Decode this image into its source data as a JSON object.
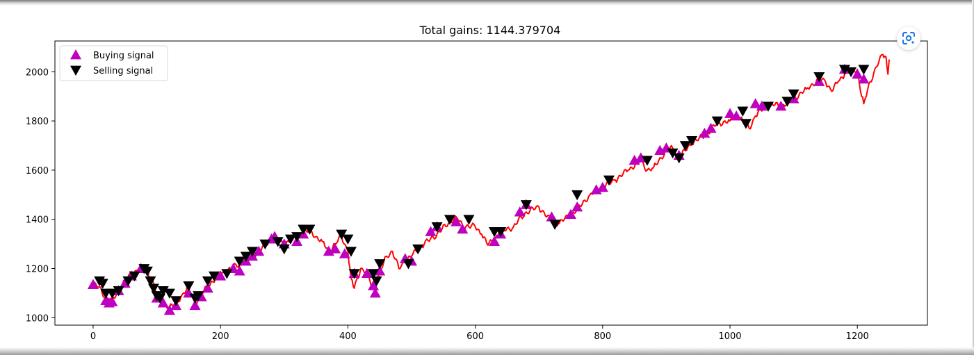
{
  "chart_data": {
    "type": "line",
    "title": "Total gains: 1144.379704",
    "xlabel": "",
    "ylabel": "",
    "xlim": [
      -60,
      1310
    ],
    "ylim": [
      970,
      2125
    ],
    "xticks": [
      0,
      200,
      400,
      600,
      800,
      1000,
      1200
    ],
    "yticks": [
      1000,
      1200,
      1400,
      1600,
      1800,
      2000
    ],
    "grid": false,
    "legend_position": "upper-left",
    "price_color": "#ff0000",
    "buy_color": "#bf00bf",
    "sell_color": "#000000",
    "price_keypoints": [
      [
        0,
        1135
      ],
      [
        10,
        1125
      ],
      [
        20,
        1080
      ],
      [
        30,
        1070
      ],
      [
        40,
        1110
      ],
      [
        50,
        1150
      ],
      [
        60,
        1175
      ],
      [
        70,
        1195
      ],
      [
        80,
        1205
      ],
      [
        90,
        1165
      ],
      [
        100,
        1100
      ],
      [
        110,
        1065
      ],
      [
        120,
        1040
      ],
      [
        130,
        1060
      ],
      [
        140,
        1095
      ],
      [
        150,
        1120
      ],
      [
        160,
        1060
      ],
      [
        170,
        1095
      ],
      [
        180,
        1130
      ],
      [
        200,
        1175
      ],
      [
        220,
        1205
      ],
      [
        240,
        1235
      ],
      [
        260,
        1270
      ],
      [
        280,
        1320
      ],
      [
        300,
        1300
      ],
      [
        320,
        1330
      ],
      [
        340,
        1355
      ],
      [
        350,
        1330
      ],
      [
        360,
        1310
      ],
      [
        370,
        1270
      ],
      [
        380,
        1300
      ],
      [
        390,
        1330
      ],
      [
        400,
        1270
      ],
      [
        405,
        1160
      ],
      [
        410,
        1120
      ],
      [
        420,
        1200
      ],
      [
        430,
        1180
      ],
      [
        440,
        1120
      ],
      [
        450,
        1180
      ],
      [
        460,
        1250
      ],
      [
        470,
        1270
      ],
      [
        480,
        1200
      ],
      [
        490,
        1230
      ],
      [
        500,
        1250
      ],
      [
        510,
        1280
      ],
      [
        520,
        1300
      ],
      [
        540,
        1340
      ],
      [
        560,
        1390
      ],
      [
        570,
        1410
      ],
      [
        580,
        1375
      ],
      [
        600,
        1370
      ],
      [
        610,
        1340
      ],
      [
        620,
        1295
      ],
      [
        630,
        1320
      ],
      [
        640,
        1350
      ],
      [
        660,
        1370
      ],
      [
        680,
        1430
      ],
      [
        700,
        1450
      ],
      [
        720,
        1390
      ],
      [
        730,
        1380
      ],
      [
        740,
        1400
      ],
      [
        760,
        1440
      ],
      [
        780,
        1500
      ],
      [
        800,
        1530
      ],
      [
        820,
        1560
      ],
      [
        840,
        1600
      ],
      [
        860,
        1640
      ],
      [
        870,
        1600
      ],
      [
        880,
        1610
      ],
      [
        900,
        1680
      ],
      [
        910,
        1690
      ],
      [
        920,
        1650
      ],
      [
        940,
        1710
      ],
      [
        960,
        1740
      ],
      [
        980,
        1790
      ],
      [
        1000,
        1800
      ],
      [
        1010,
        1830
      ],
      [
        1020,
        1800
      ],
      [
        1030,
        1770
      ],
      [
        1040,
        1820
      ],
      [
        1060,
        1870
      ],
      [
        1080,
        1860
      ],
      [
        1100,
        1890
      ],
      [
        1120,
        1930
      ],
      [
        1140,
        1970
      ],
      [
        1150,
        1960
      ],
      [
        1160,
        1920
      ],
      [
        1170,
        1960
      ],
      [
        1180,
        1990
      ],
      [
        1200,
        2010
      ],
      [
        1205,
        1920
      ],
      [
        1210,
        1870
      ],
      [
        1220,
        1960
      ],
      [
        1230,
        2020
      ],
      [
        1240,
        2070
      ],
      [
        1245,
        2060
      ],
      [
        1248,
        1990
      ],
      [
        1250,
        2050
      ]
    ],
    "buy_signals": [
      [
        0,
        1135
      ],
      [
        20,
        1070
      ],
      [
        25,
        1060
      ],
      [
        30,
        1065
      ],
      [
        40,
        1110
      ],
      [
        50,
        1140
      ],
      [
        60,
        1170
      ],
      [
        75,
        1200
      ],
      [
        100,
        1080
      ],
      [
        110,
        1060
      ],
      [
        120,
        1030
      ],
      [
        130,
        1050
      ],
      [
        150,
        1100
      ],
      [
        160,
        1050
      ],
      [
        170,
        1085
      ],
      [
        180,
        1120
      ],
      [
        200,
        1170
      ],
      [
        220,
        1200
      ],
      [
        230,
        1190
      ],
      [
        240,
        1230
      ],
      [
        250,
        1250
      ],
      [
        260,
        1270
      ],
      [
        280,
        1320
      ],
      [
        285,
        1330
      ],
      [
        300,
        1300
      ],
      [
        320,
        1310
      ],
      [
        330,
        1340
      ],
      [
        370,
        1270
      ],
      [
        380,
        1280
      ],
      [
        395,
        1260
      ],
      [
        410,
        1180
      ],
      [
        430,
        1180
      ],
      [
        440,
        1130
      ],
      [
        443,
        1100
      ],
      [
        450,
        1190
      ],
      [
        490,
        1240
      ],
      [
        500,
        1230
      ],
      [
        530,
        1350
      ],
      [
        540,
        1370
      ],
      [
        570,
        1390
      ],
      [
        580,
        1360
      ],
      [
        630,
        1310
      ],
      [
        640,
        1340
      ],
      [
        670,
        1430
      ],
      [
        680,
        1460
      ],
      [
        720,
        1410
      ],
      [
        750,
        1420
      ],
      [
        760,
        1450
      ],
      [
        790,
        1520
      ],
      [
        800,
        1530
      ],
      [
        850,
        1640
      ],
      [
        860,
        1650
      ],
      [
        890,
        1680
      ],
      [
        900,
        1690
      ],
      [
        920,
        1660
      ],
      [
        960,
        1750
      ],
      [
        970,
        1770
      ],
      [
        1000,
        1830
      ],
      [
        1010,
        1820
      ],
      [
        1040,
        1870
      ],
      [
        1050,
        1860
      ],
      [
        1080,
        1860
      ],
      [
        1100,
        1890
      ],
      [
        1140,
        1960
      ],
      [
        1180,
        2010
      ],
      [
        1200,
        1990
      ],
      [
        1210,
        1970
      ]
    ],
    "sell_signals": [
      [
        10,
        1150
      ],
      [
        15,
        1140
      ],
      [
        20,
        1100
      ],
      [
        30,
        1100
      ],
      [
        40,
        1110
      ],
      [
        55,
        1150
      ],
      [
        65,
        1170
      ],
      [
        80,
        1200
      ],
      [
        85,
        1190
      ],
      [
        90,
        1150
      ],
      [
        95,
        1120
      ],
      [
        100,
        1090
      ],
      [
        105,
        1080
      ],
      [
        110,
        1110
      ],
      [
        120,
        1100
      ],
      [
        130,
        1070
      ],
      [
        150,
        1130
      ],
      [
        160,
        1080
      ],
      [
        165,
        1090
      ],
      [
        180,
        1150
      ],
      [
        190,
        1170
      ],
      [
        210,
        1180
      ],
      [
        230,
        1230
      ],
      [
        240,
        1250
      ],
      [
        250,
        1270
      ],
      [
        270,
        1300
      ],
      [
        290,
        1310
      ],
      [
        300,
        1280
      ],
      [
        310,
        1320
      ],
      [
        320,
        1330
      ],
      [
        330,
        1360
      ],
      [
        340,
        1360
      ],
      [
        390,
        1340
      ],
      [
        400,
        1320
      ],
      [
        405,
        1270
      ],
      [
        410,
        1180
      ],
      [
        440,
        1180
      ],
      [
        445,
        1150
      ],
      [
        450,
        1220
      ],
      [
        495,
        1220
      ],
      [
        510,
        1280
      ],
      [
        540,
        1370
      ],
      [
        560,
        1400
      ],
      [
        590,
        1400
      ],
      [
        630,
        1350
      ],
      [
        640,
        1350
      ],
      [
        680,
        1460
      ],
      [
        725,
        1380
      ],
      [
        760,
        1500
      ],
      [
        810,
        1560
      ],
      [
        870,
        1640
      ],
      [
        910,
        1670
      ],
      [
        920,
        1650
      ],
      [
        930,
        1700
      ],
      [
        940,
        1720
      ],
      [
        980,
        1800
      ],
      [
        1020,
        1840
      ],
      [
        1025,
        1790
      ],
      [
        1060,
        1860
      ],
      [
        1090,
        1880
      ],
      [
        1100,
        1910
      ],
      [
        1140,
        1980
      ],
      [
        1180,
        2010
      ],
      [
        1190,
        2000
      ],
      [
        1210,
        2010
      ]
    ]
  },
  "legend": {
    "buy_label": "Buying signal",
    "sell_label": "Selling signal"
  },
  "toolbar": {
    "lens_icon": "google-lens-icon"
  }
}
